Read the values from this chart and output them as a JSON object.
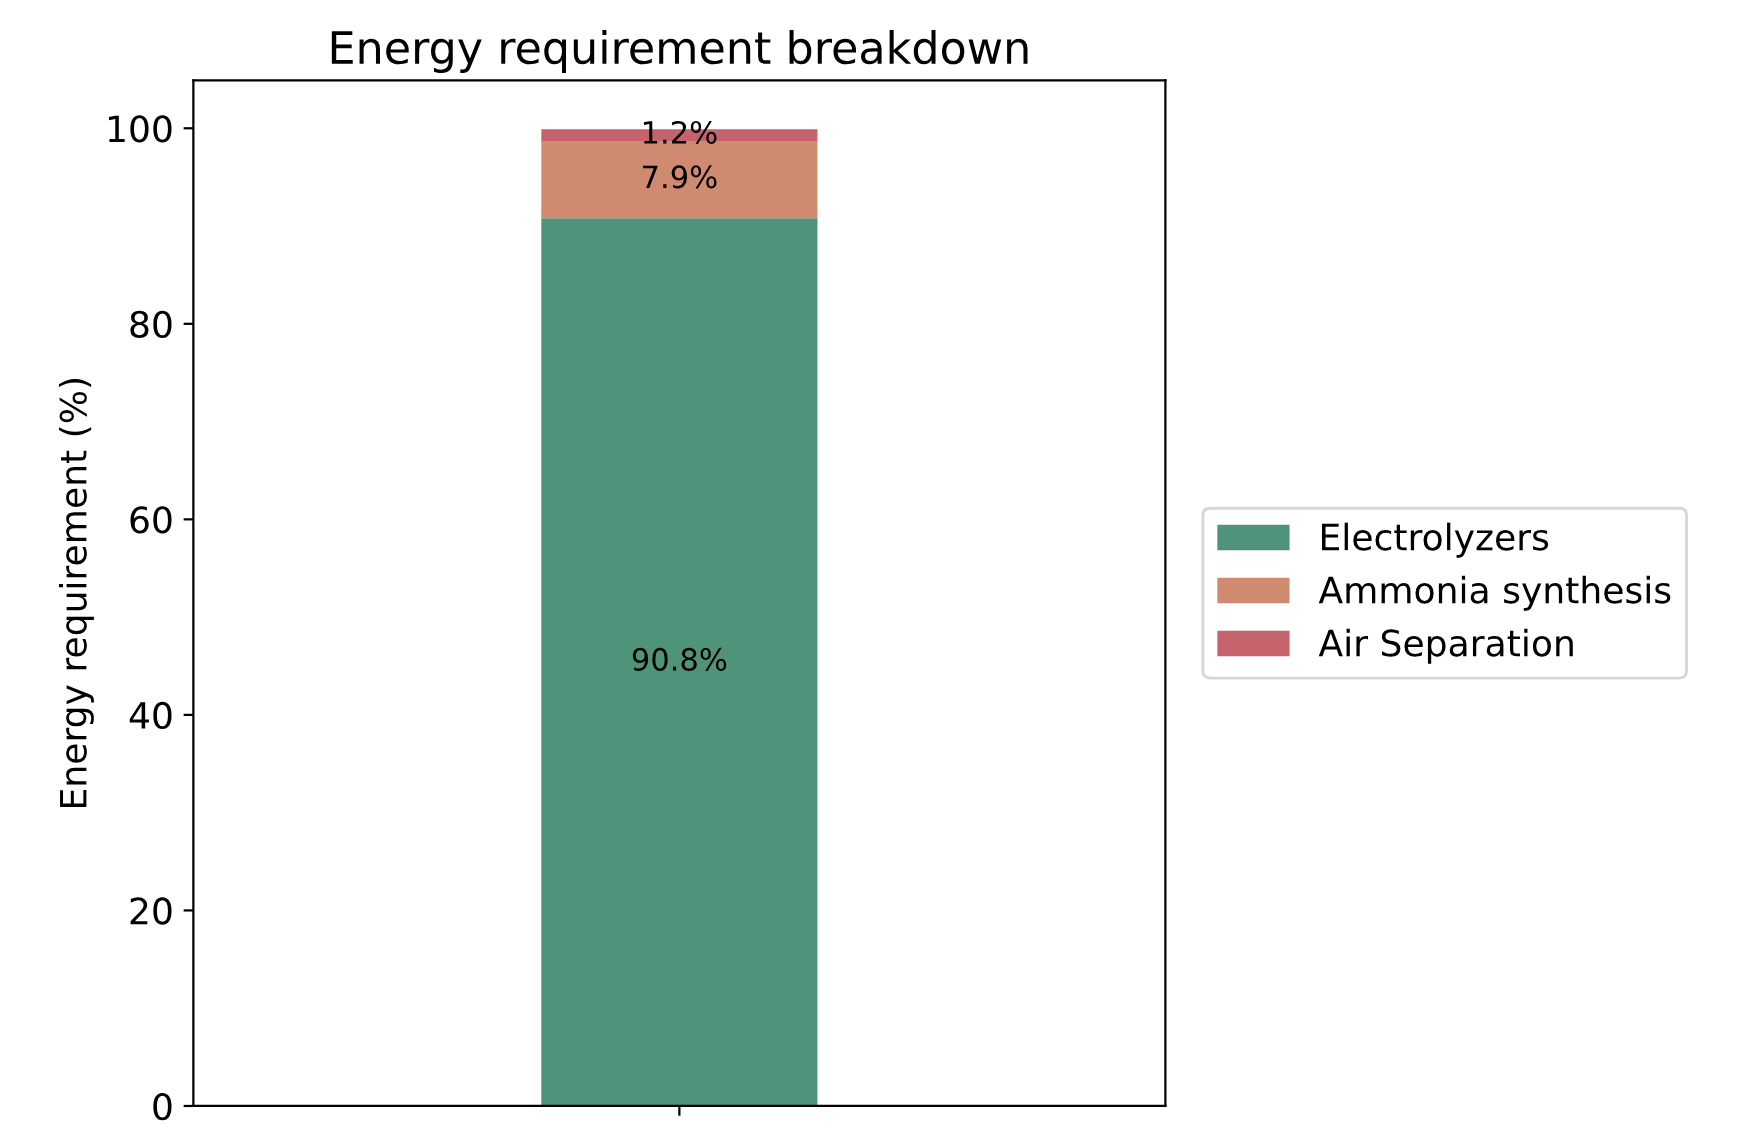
{
  "chart_data": {
    "type": "bar",
    "title": "Energy requirement breakdown",
    "ylabel": "Energy requirement (%)",
    "categories": [
      null
    ],
    "stacked": true,
    "series": [
      {
        "name": "Electrolyzers",
        "color": "#4e937a",
        "values": [
          90.8
        ],
        "value_labels": [
          "90.8%"
        ]
      },
      {
        "name": "Ammonia synthesis",
        "color": "#d08a6f",
        "values": [
          7.9
        ],
        "value_labels": [
          "7.9%"
        ]
      },
      {
        "name": "Air Separation",
        "color": "#c4636c",
        "values": [
          1.2
        ],
        "value_labels": [
          "1.2%"
        ]
      }
    ],
    "ylim": [
      0,
      104.9
    ],
    "yticks": [
      0,
      20,
      40,
      60,
      80,
      100
    ],
    "grid": false,
    "legend": "right"
  }
}
